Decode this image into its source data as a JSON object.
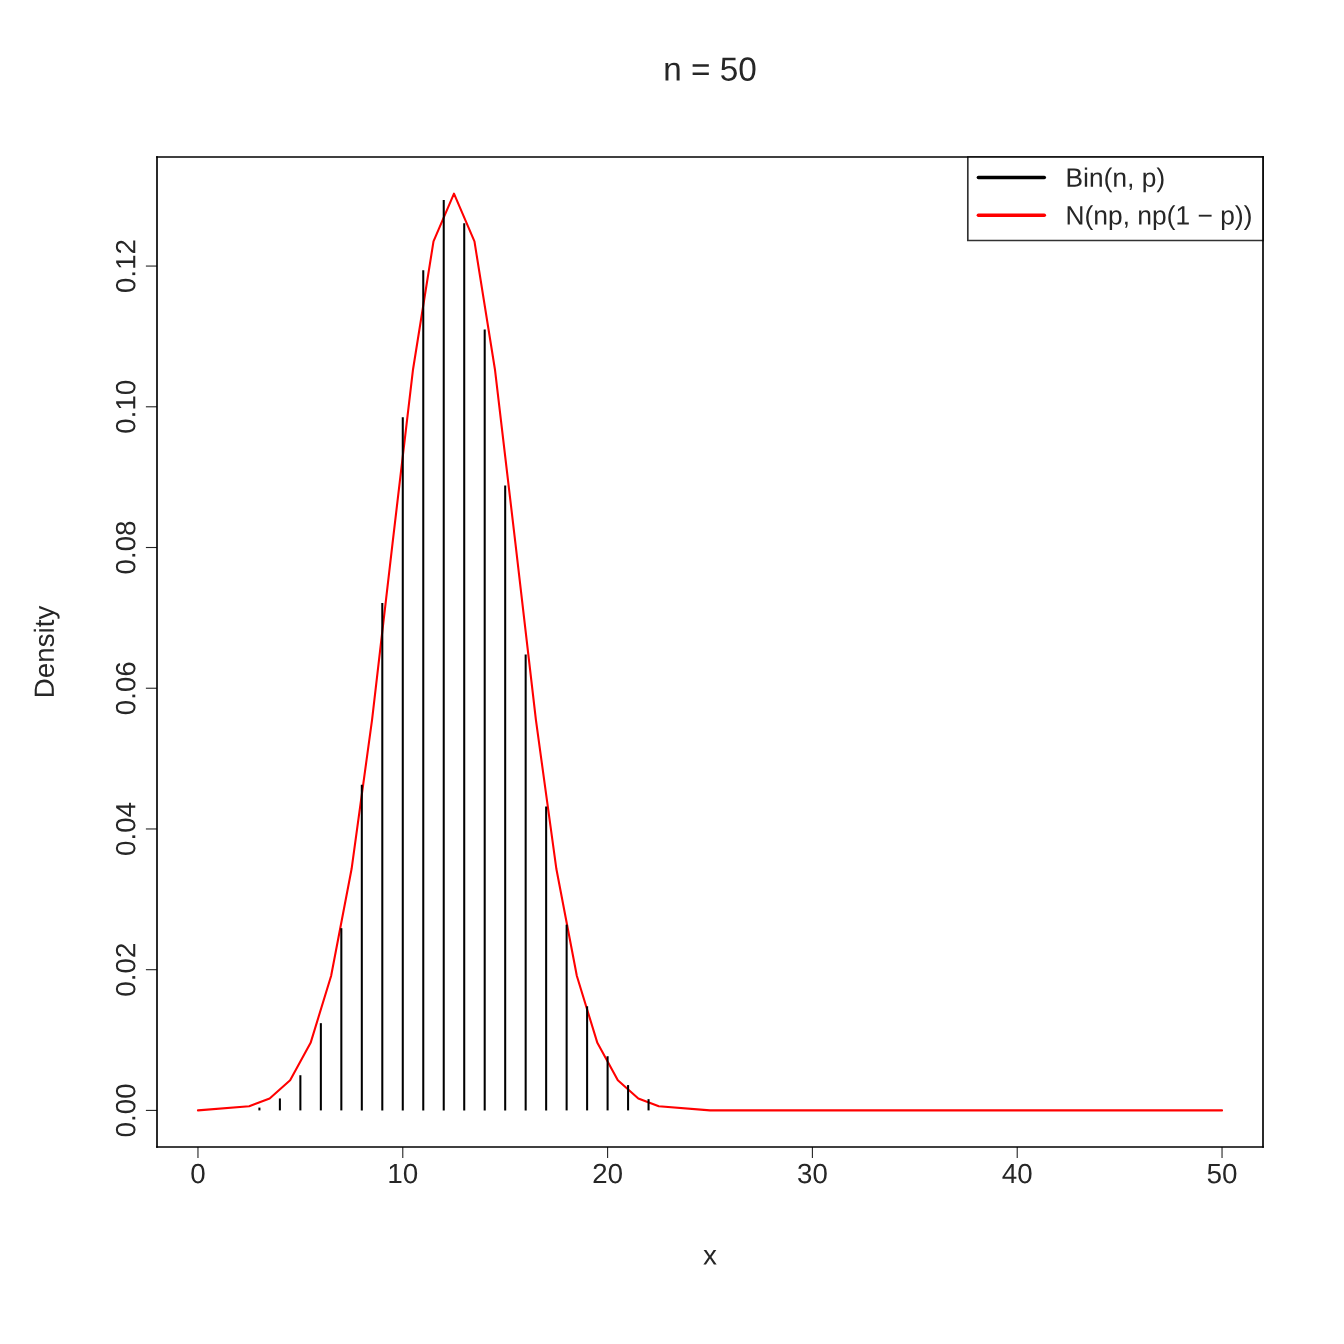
{
  "chart_data": {
    "type": "bar",
    "title": "n = 50",
    "xlabel": "x",
    "ylabel": "Density",
    "xlim": [
      -2,
      52
    ],
    "xticks": [
      0,
      10,
      20,
      30,
      40,
      50
    ],
    "ylim": [
      -0.0052,
      0.1355
    ],
    "yticks": [
      {
        "value": 0,
        "label": "0.00"
      },
      {
        "value": 0.02,
        "label": "0.02"
      },
      {
        "value": 0.04,
        "label": "0.04"
      },
      {
        "value": 0.06,
        "label": "0.06"
      },
      {
        "value": 0.08,
        "label": "0.08"
      },
      {
        "value": 0.1,
        "label": "0.10"
      },
      {
        "value": 0.12,
        "label": "0.12"
      }
    ],
    "grid": false,
    "legend": "top right",
    "series": [
      {
        "name": "Bin(n, p)",
        "color": "#000000",
        "x": [
          3,
          4,
          5,
          6,
          7,
          8,
          9,
          10,
          11,
          12,
          13,
          14,
          15,
          16,
          17,
          18,
          19,
          20,
          21,
          22
        ],
        "values": [
          0.0004,
          0.0017,
          0.005,
          0.0124,
          0.0259,
          0.0463,
          0.0721,
          0.0985,
          0.1194,
          0.1294,
          0.1261,
          0.111,
          0.0888,
          0.0648,
          0.0432,
          0.0264,
          0.0148,
          0.0077,
          0.0036,
          0.0016
        ]
      },
      {
        "name": "N(np, np(1 − p))",
        "type": "line",
        "color": "#ff0000",
        "x": [
          0,
          2.5,
          3.5,
          4.5,
          5.5,
          6.5,
          7.5,
          8.5,
          9.5,
          10.5,
          11.5,
          12.5,
          13.5,
          14.5,
          15.5,
          16.5,
          17.5,
          18.5,
          19.5,
          20.5,
          21.5,
          22.5,
          25,
          30,
          35,
          40,
          45,
          50
        ],
        "values": [
          0,
          0.0006,
          0.0017,
          0.0043,
          0.0096,
          0.0191,
          0.0343,
          0.0555,
          0.0806,
          0.1053,
          0.1235,
          0.1303,
          0.1235,
          0.1053,
          0.0806,
          0.0555,
          0.0343,
          0.0191,
          0.0096,
          0.0043,
          0.0017,
          0.0006,
          0,
          0,
          0,
          0,
          0,
          0
        ]
      }
    ]
  }
}
